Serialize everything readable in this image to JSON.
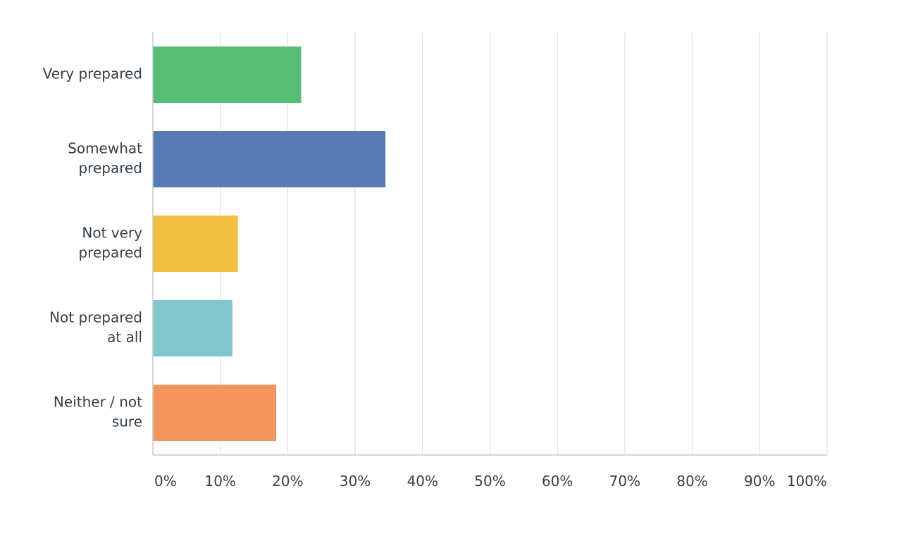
{
  "chart_data": {
    "type": "bar",
    "orientation": "horizontal",
    "categories": [
      [
        "Very prepared"
      ],
      [
        "Somewhat",
        "prepared"
      ],
      [
        "Not very",
        "prepared"
      ],
      [
        "Not prepared",
        "at all"
      ],
      [
        "Neither / not",
        "sure"
      ]
    ],
    "values": [
      22,
      34.5,
      12.6,
      11.8,
      18.3
    ],
    "unit": "%",
    "xlim": [
      0,
      100
    ],
    "x_ticks": [
      0,
      10,
      20,
      30,
      40,
      50,
      60,
      70,
      80,
      90,
      100
    ],
    "x_tick_labels": [
      "0%",
      "10%",
      "20%",
      "30%",
      "40%",
      "50%",
      "60%",
      "70%",
      "80%",
      "90%",
      "100%"
    ],
    "colors": [
      "#56bd75",
      "#587bb1",
      "#f2c041",
      "#81c6cc",
      "#f2955e"
    ],
    "grid": true,
    "legend": "none",
    "title": "",
    "xlabel": "",
    "ylabel": ""
  }
}
